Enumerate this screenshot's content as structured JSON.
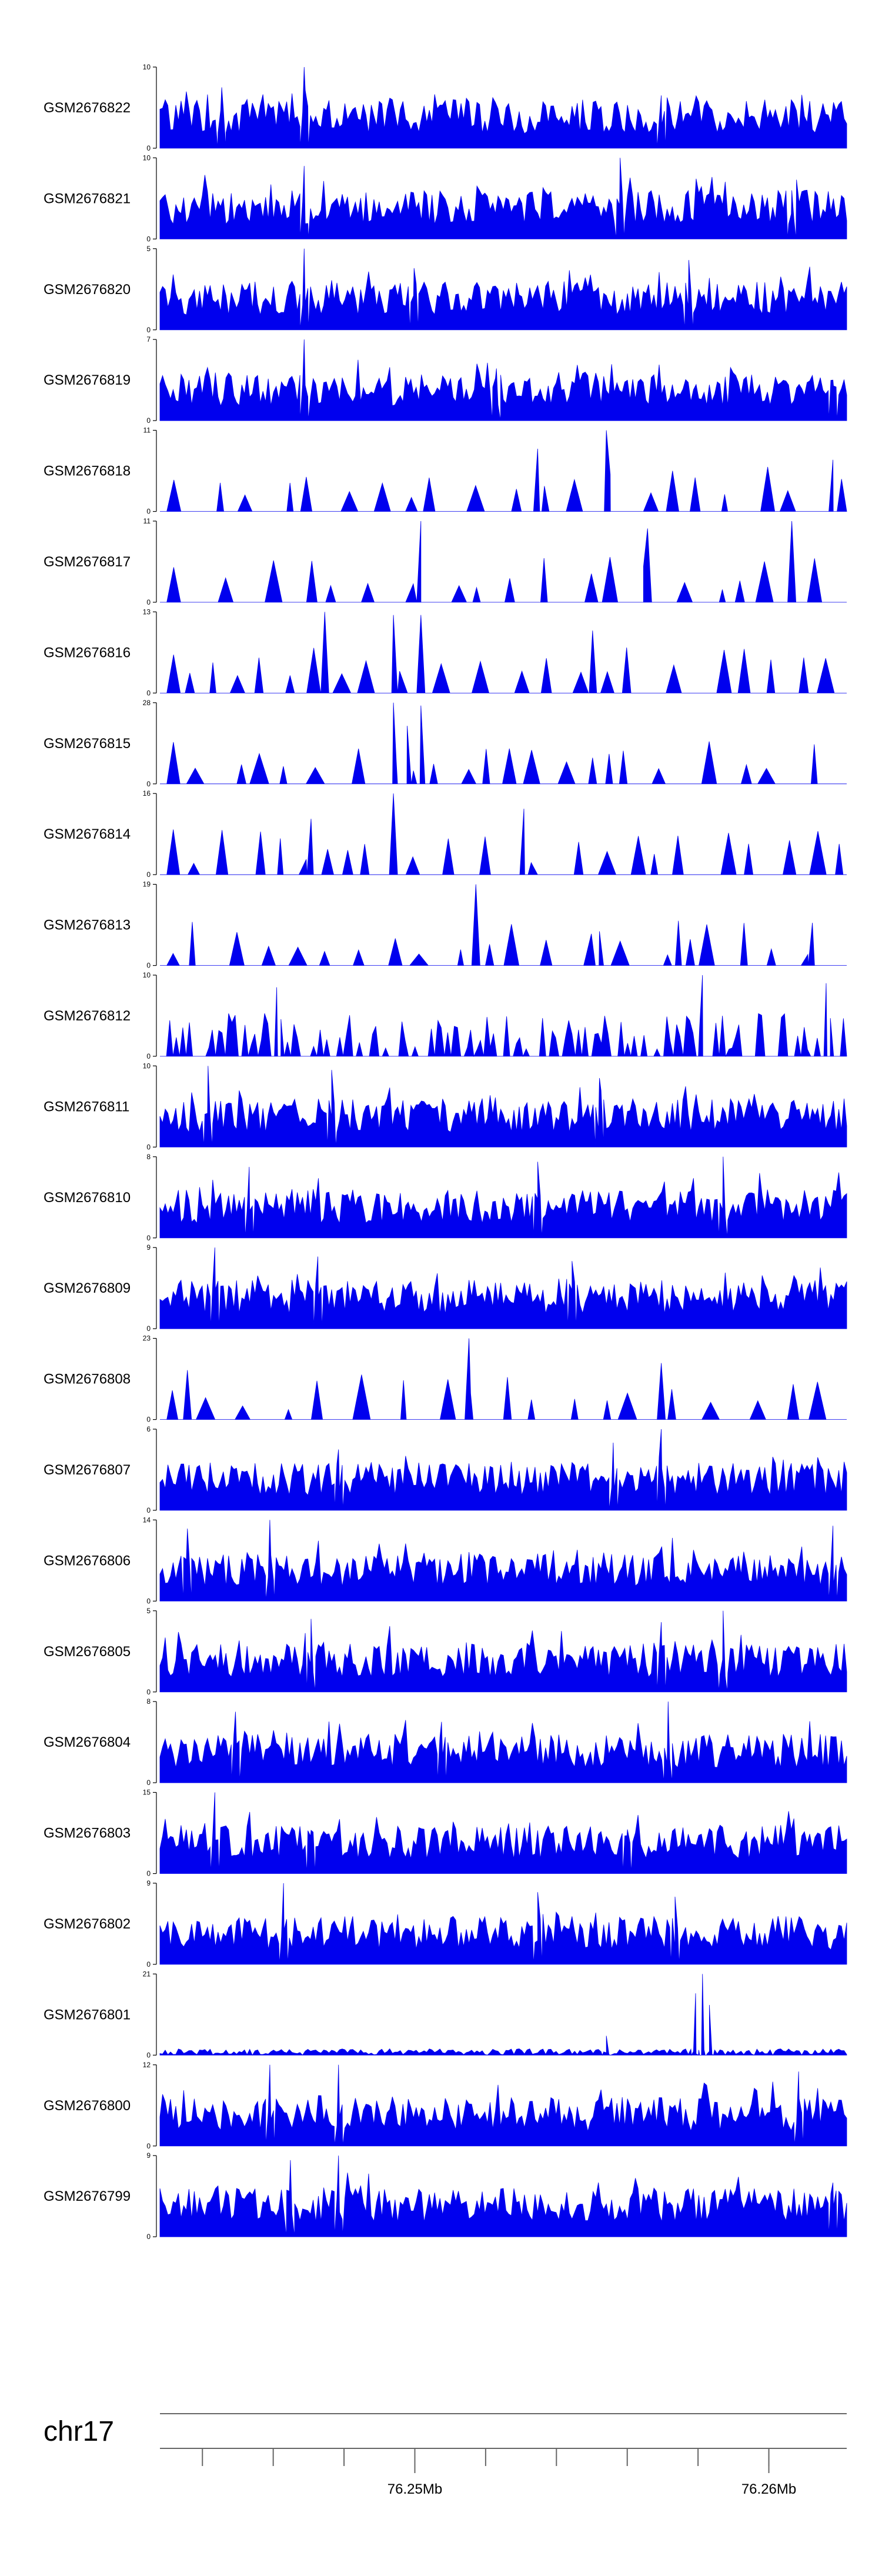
{
  "chart_data": {
    "type": "area",
    "colors": {
      "fill": "#0000ee",
      "axis": "#000000",
      "genome_axis": "#666666"
    },
    "tracks": [
      {
        "label": "GSM2676822",
        "ymin": "0",
        "ymax": "10",
        "max": 10,
        "style": "dense",
        "seed": 22,
        "peaks": [
          [
            0.21,
            10
          ],
          [
            0.73,
            6.5
          ],
          [
            0.09,
            7.5
          ]
        ]
      },
      {
        "label": "GSM2676821",
        "ymin": "0",
        "ymax": "10",
        "max": 10,
        "style": "dense",
        "seed": 21,
        "peaks": [
          [
            0.67,
            10
          ],
          [
            0.21,
            9
          ],
          [
            0.92,
            6
          ]
        ]
      },
      {
        "label": "GSM2676820",
        "ymin": "0",
        "ymax": "5",
        "max": 5,
        "style": "dense",
        "seed": 20,
        "peaks": [
          [
            0.21,
            5
          ],
          [
            0.77,
            4.3
          ],
          [
            0.37,
            3.8
          ]
        ]
      },
      {
        "label": "GSM2676819",
        "ymin": "0",
        "ymax": "7",
        "max": 7,
        "style": "dense",
        "seed": 19,
        "peaks": [
          [
            0.21,
            7
          ],
          [
            0.49,
            4.5
          ],
          [
            0.98,
            3.5
          ]
        ]
      },
      {
        "label": "GSM2676818",
        "ymin": "0",
        "ymax": "11",
        "max": 11,
        "style": "sparse",
        "seed": 18,
        "peaks": [
          [
            0.65,
            11
          ],
          [
            0.55,
            8.5
          ],
          [
            0.98,
            7
          ]
        ]
      },
      {
        "label": "GSM2676817",
        "ymin": "0",
        "ymax": "11",
        "max": 11,
        "style": "sparse",
        "seed": 17,
        "peaks": [
          [
            0.38,
            11
          ],
          [
            0.92,
            11
          ],
          [
            0.71,
            10
          ]
        ]
      },
      {
        "label": "GSM2676816",
        "ymin": "0",
        "ymax": "13",
        "max": 13,
        "style": "sparse",
        "seed": 16,
        "peaks": [
          [
            0.24,
            13
          ],
          [
            0.34,
            12.5
          ],
          [
            0.38,
            12.5
          ],
          [
            0.63,
            10
          ]
        ]
      },
      {
        "label": "GSM2676815",
        "ymin": "0",
        "ymax": "28",
        "max": 28,
        "style": "sparse",
        "seed": 15,
        "peaks": [
          [
            0.34,
            28
          ],
          [
            0.38,
            27
          ],
          [
            0.36,
            20
          ],
          [
            0.63,
            9
          ]
        ]
      },
      {
        "label": "GSM2676814",
        "ymin": "0",
        "ymax": "16",
        "max": 16,
        "style": "sparse",
        "seed": 14,
        "peaks": [
          [
            0.34,
            16
          ],
          [
            0.53,
            13
          ],
          [
            0.22,
            11
          ]
        ]
      },
      {
        "label": "GSM2676813",
        "ymin": "0",
        "ymax": "19",
        "max": 19,
        "style": "sparse",
        "seed": 13,
        "peaks": [
          [
            0.46,
            19
          ],
          [
            0.64,
            8
          ],
          [
            0.95,
            10
          ]
        ]
      },
      {
        "label": "GSM2676812",
        "ymin": "0",
        "ymax": "10",
        "max": 10,
        "style": "medium",
        "seed": 12,
        "peaks": [
          [
            0.79,
            10
          ],
          [
            0.97,
            9
          ],
          [
            0.17,
            8.5
          ]
        ]
      },
      {
        "label": "GSM2676811",
        "ymin": "0",
        "ymax": "10",
        "max": 10,
        "style": "dense",
        "seed": 11,
        "peaks": [
          [
            0.07,
            10
          ],
          [
            0.25,
            9.5
          ],
          [
            0.64,
            8.5
          ]
        ]
      },
      {
        "label": "GSM2676810",
        "ymin": "0",
        "ymax": "8",
        "max": 8,
        "style": "dense",
        "seed": 10,
        "peaks": [
          [
            0.82,
            8
          ],
          [
            0.13,
            7
          ],
          [
            0.55,
            7.5
          ]
        ]
      },
      {
        "label": "GSM2676809",
        "ymin": "0",
        "ymax": "9",
        "max": 9,
        "style": "dense",
        "seed": 9,
        "peaks": [
          [
            0.08,
            9
          ],
          [
            0.23,
            8
          ],
          [
            0.6,
            7.5
          ]
        ]
      },
      {
        "label": "GSM2676808",
        "ymin": "0",
        "ymax": "23",
        "max": 23,
        "style": "sparse",
        "seed": 8,
        "peaks": [
          [
            0.45,
            23
          ],
          [
            0.73,
            16
          ],
          [
            0.04,
            14
          ]
        ]
      },
      {
        "label": "GSM2676807",
        "ymin": "0",
        "ymax": "6",
        "max": 6,
        "style": "dense",
        "seed": 7,
        "peaks": [
          [
            0.73,
            6
          ],
          [
            0.66,
            5
          ],
          [
            0.26,
            4.5
          ]
        ]
      },
      {
        "label": "GSM2676806",
        "ymin": "0",
        "ymax": "14",
        "max": 14,
        "style": "dense",
        "seed": 6,
        "peaks": [
          [
            0.16,
            14
          ],
          [
            0.98,
            13
          ],
          [
            0.04,
            12.5
          ]
        ]
      },
      {
        "label": "GSM2676805",
        "ymin": "0",
        "ymax": "5",
        "max": 5,
        "style": "dense",
        "seed": 5,
        "peaks": [
          [
            0.82,
            5
          ],
          [
            0.22,
            4.5
          ],
          [
            0.73,
            4.3
          ]
        ]
      },
      {
        "label": "GSM2676804",
        "ymin": "0",
        "ymax": "8",
        "max": 8,
        "style": "dense",
        "seed": 4,
        "peaks": [
          [
            0.74,
            8
          ],
          [
            0.11,
            7
          ],
          [
            0.41,
            6
          ]
        ]
      },
      {
        "label": "GSM2676803",
        "ymin": "0",
        "ymax": "15",
        "max": 15,
        "style": "dense",
        "seed": 3,
        "peaks": [
          [
            0.08,
            15
          ],
          [
            0.22,
            8
          ],
          [
            0.68,
            7
          ]
        ]
      },
      {
        "label": "GSM2676802",
        "ymin": "0",
        "ymax": "9",
        "max": 9,
        "style": "dense",
        "seed": 2,
        "peaks": [
          [
            0.18,
            9
          ],
          [
            0.55,
            8
          ],
          [
            0.75,
            7.5
          ]
        ]
      },
      {
        "label": "GSM2676801",
        "ymin": "0",
        "ymax": "21",
        "max": 21,
        "style": "low",
        "seed": 1,
        "peaks": [
          [
            0.79,
            21
          ],
          [
            0.78,
            16
          ],
          [
            0.8,
            13
          ],
          [
            0.65,
            5
          ]
        ]
      },
      {
        "label": "GSM2676800",
        "ymin": "0",
        "ymax": "12",
        "max": 12,
        "style": "dense",
        "seed": 100,
        "peaks": [
          [
            0.16,
            12
          ],
          [
            0.26,
            12
          ],
          [
            0.93,
            11
          ]
        ]
      },
      {
        "label": "GSM2676799",
        "ymin": "0",
        "ymax": "9",
        "max": 9,
        "style": "dense",
        "seed": 99,
        "peaks": [
          [
            0.26,
            9
          ],
          [
            0.19,
            8.5
          ],
          [
            0.98,
            6
          ]
        ]
      }
    ],
    "genome_axis": {
      "chrom": "chr17",
      "range_mb": [
        76.2428,
        76.2622
      ],
      "minor_ticks_mb": [
        76.244,
        76.246,
        76.248,
        76.252,
        76.254,
        76.256,
        76.258,
        76.26
      ],
      "labeled_ticks": [
        {
          "mb": 76.25,
          "label": "76.25Mb"
        },
        {
          "mb": 76.26,
          "label": "76.26Mb"
        }
      ]
    }
  }
}
